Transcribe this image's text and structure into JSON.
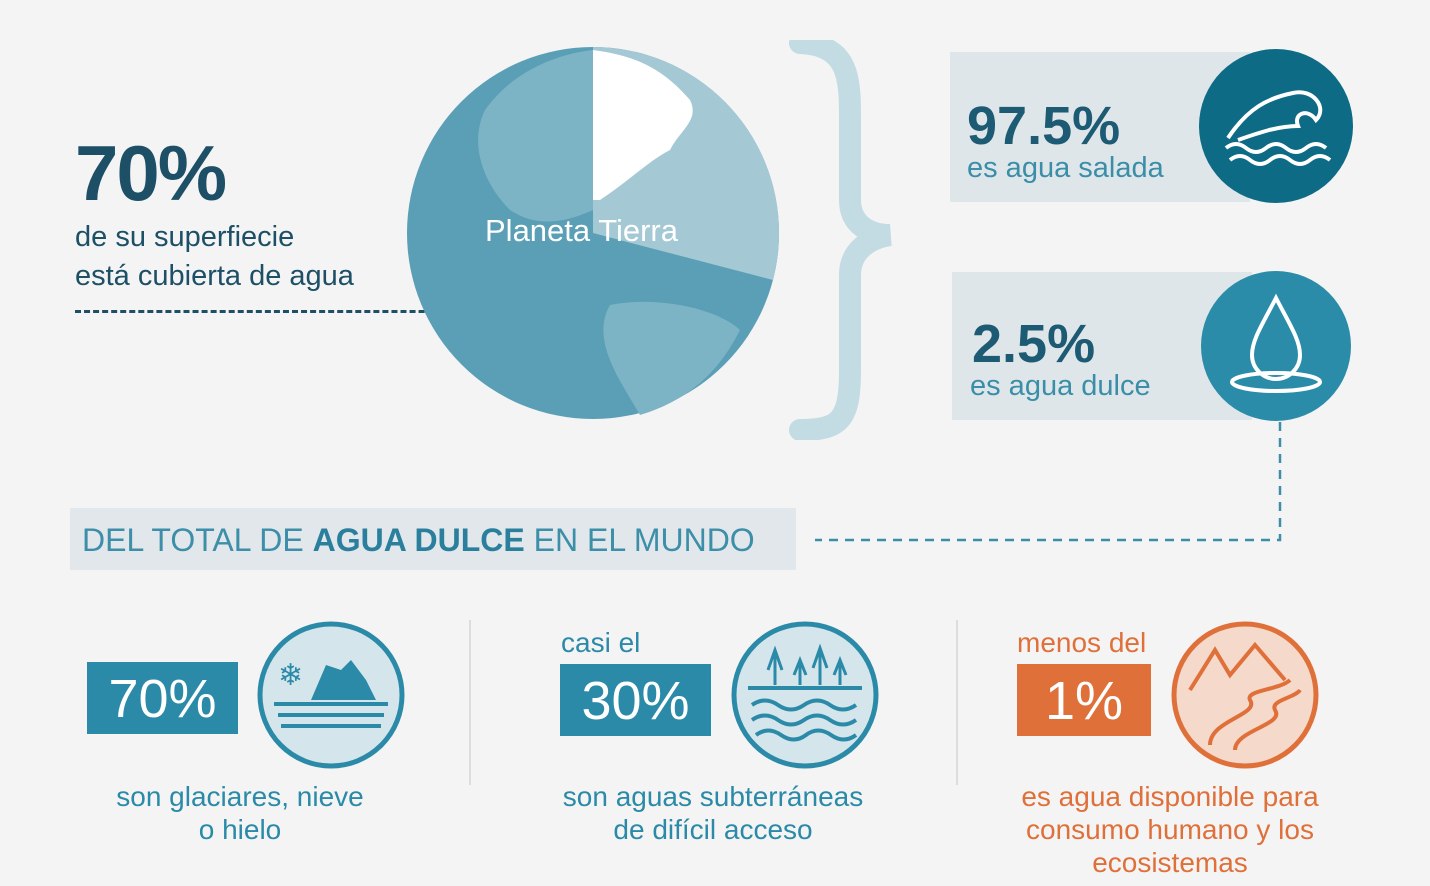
{
  "left": {
    "percent": "70%",
    "line1": "de su superfiecie",
    "line2": "está cubierta de agua"
  },
  "globe": {
    "label": "Planeta Tierra"
  },
  "salt": {
    "percent": "97.5%",
    "text": "es agua salada",
    "icon": "wave-icon"
  },
  "fresh": {
    "percent": "2.5%",
    "text": "es agua dulce",
    "icon": "water-drop-icon"
  },
  "banner": {
    "pre": "DEL TOTAL DE ",
    "bold": "AGUA DULCE",
    "post": " EN EL MUNDO"
  },
  "items": [
    {
      "prefix": "",
      "percent": "70%",
      "line1": "son glaciares, nieve",
      "line2": "o hielo",
      "line3": "",
      "icon": "glacier-icon"
    },
    {
      "prefix": "casi el",
      "percent": "30%",
      "line1": "son aguas subterráneas",
      "line2": "de difícil acceso",
      "line3": "",
      "icon": "groundwater-icon"
    },
    {
      "prefix": "menos del",
      "percent": "1%",
      "line1": "es agua disponible para",
      "line2": "consumo humano y los",
      "line3": "ecosistemas",
      "icon": "river-mountain-icon"
    }
  ],
  "colors": {
    "dark": "#1d4f66",
    "teal": "#2a8aa8",
    "orange": "#e0703a",
    "globe": "#5a9fb6"
  }
}
